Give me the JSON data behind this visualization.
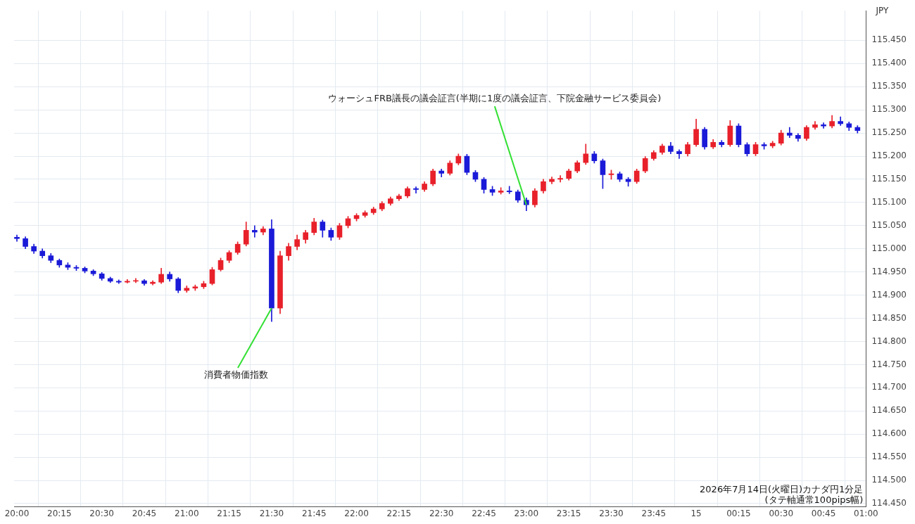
{
  "chart_data": {
    "type": "candlestick",
    "ylabel": "JPY",
    "x": [
      "2026-07-14T20:00",
      "2026-07-14T20:03",
      "2026-07-14T20:06",
      "2026-07-14T20:09",
      "2026-07-14T20:12",
      "2026-07-14T20:15",
      "2026-07-14T20:18",
      "2026-07-14T20:21",
      "2026-07-14T20:24",
      "2026-07-14T20:27",
      "2026-07-14T20:30",
      "2026-07-14T20:33",
      "2026-07-14T20:36",
      "2026-07-14T20:39",
      "2026-07-14T20:42",
      "2026-07-14T20:45",
      "2026-07-14T20:48",
      "2026-07-14T20:51",
      "2026-07-14T20:54",
      "2026-07-14T20:57",
      "2026-07-14T21:00",
      "2026-07-14T21:03",
      "2026-07-14T21:06",
      "2026-07-14T21:09",
      "2026-07-14T21:12",
      "2026-07-14T21:15",
      "2026-07-14T21:18",
      "2026-07-14T21:21",
      "2026-07-14T21:24",
      "2026-07-14T21:27",
      "2026-07-14T21:30",
      "2026-07-14T21:33",
      "2026-07-14T21:36",
      "2026-07-14T21:39",
      "2026-07-14T21:42",
      "2026-07-14T21:45",
      "2026-07-14T21:48",
      "2026-07-14T21:51",
      "2026-07-14T21:54",
      "2026-07-14T21:57",
      "2026-07-14T22:00",
      "2026-07-14T22:03",
      "2026-07-14T22:06",
      "2026-07-14T22:09",
      "2026-07-14T22:12",
      "2026-07-14T22:15",
      "2026-07-14T22:18",
      "2026-07-14T22:21",
      "2026-07-14T22:24",
      "2026-07-14T22:27",
      "2026-07-14T22:30",
      "2026-07-14T22:33",
      "2026-07-14T22:36",
      "2026-07-14T22:39",
      "2026-07-14T22:42",
      "2026-07-14T22:45",
      "2026-07-14T22:48",
      "2026-07-14T22:51",
      "2026-07-14T22:54",
      "2026-07-14T22:57",
      "2026-07-14T23:00",
      "2026-07-14T23:03",
      "2026-07-14T23:06",
      "2026-07-14T23:09",
      "2026-07-14T23:12",
      "2026-07-14T23:15",
      "2026-07-14T23:18",
      "2026-07-14T23:21",
      "2026-07-14T23:24",
      "2026-07-14T23:27",
      "2026-07-14T23:30",
      "2026-07-14T23:33",
      "2026-07-14T23:36",
      "2026-07-14T23:39",
      "2026-07-14T23:42",
      "2026-07-14T23:45",
      "2026-07-14T23:48",
      "2026-07-14T23:51",
      "2026-07-14T23:54",
      "2026-07-14T23:57",
      "2026-07-15T00:00",
      "2026-07-15T00:03",
      "2026-07-15T00:06",
      "2026-07-15T00:09",
      "2026-07-15T00:12",
      "2026-07-15T00:15",
      "2026-07-15T00:18",
      "2026-07-15T00:21",
      "2026-07-15T00:24",
      "2026-07-15T00:27",
      "2026-07-15T00:30",
      "2026-07-15T00:33",
      "2026-07-15T00:36",
      "2026-07-15T00:39",
      "2026-07-15T00:42",
      "2026-07-15T00:45",
      "2026-07-15T00:48",
      "2026-07-15T00:51",
      "2026-07-15T00:54",
      "2026-07-15T00:57"
    ],
    "ohlc": [
      [
        115.025,
        115.03,
        115.016,
        115.022
      ],
      [
        115.022,
        115.026,
        115.0,
        115.005
      ],
      [
        115.005,
        115.01,
        114.99,
        114.995
      ],
      [
        114.995,
        115.0,
        114.98,
        114.985
      ],
      [
        114.985,
        114.99,
        114.97,
        114.975
      ],
      [
        114.975,
        114.978,
        114.96,
        114.965
      ],
      [
        114.965,
        114.97,
        114.955,
        114.96
      ],
      [
        114.96,
        114.964,
        114.953,
        114.958
      ],
      [
        114.958,
        114.961,
        114.948,
        114.952
      ],
      [
        114.952,
        114.955,
        114.942,
        114.946
      ],
      [
        114.946,
        114.949,
        114.932,
        114.936
      ],
      [
        114.936,
        114.939,
        114.927,
        114.93
      ],
      [
        114.93,
        114.933,
        114.925,
        114.928
      ],
      [
        114.928,
        114.934,
        114.926,
        114.93
      ],
      [
        114.93,
        114.936,
        114.927,
        114.931
      ],
      [
        114.931,
        114.934,
        114.921,
        114.925
      ],
      [
        114.925,
        114.931,
        114.922,
        114.928
      ],
      [
        114.928,
        114.958,
        114.925,
        114.945
      ],
      [
        114.945,
        114.95,
        114.93,
        114.935
      ],
      [
        114.935,
        114.938,
        114.905,
        114.91
      ],
      [
        114.91,
        114.92,
        114.906,
        114.915
      ],
      [
        114.915,
        114.922,
        114.91,
        114.918
      ],
      [
        114.918,
        114.93,
        114.914,
        114.925
      ],
      [
        114.925,
        114.96,
        114.922,
        114.955
      ],
      [
        114.955,
        114.98,
        114.952,
        114.975
      ],
      [
        114.975,
        114.996,
        114.97,
        114.992
      ],
      [
        114.992,
        115.015,
        114.988,
        115.01
      ],
      [
        115.01,
        115.058,
        115.006,
        115.04
      ],
      [
        115.04,
        115.05,
        115.025,
        115.036
      ],
      [
        115.036,
        115.048,
        115.03,
        115.043
      ],
      [
        115.043,
        115.063,
        114.843,
        114.872
      ],
      [
        114.872,
        114.995,
        114.86,
        114.985
      ],
      [
        114.985,
        115.012,
        114.975,
        115.005
      ],
      [
        115.005,
        115.03,
        114.998,
        115.02
      ],
      [
        115.02,
        115.04,
        115.012,
        115.035
      ],
      [
        115.035,
        115.066,
        115.03,
        115.058
      ],
      [
        115.058,
        115.062,
        115.025,
        115.04
      ],
      [
        115.04,
        115.045,
        115.018,
        115.025
      ],
      [
        115.025,
        115.055,
        115.02,
        115.05
      ],
      [
        115.05,
        115.07,
        115.045,
        115.065
      ],
      [
        115.065,
        115.076,
        115.06,
        115.072
      ],
      [
        115.072,
        115.082,
        115.068,
        115.078
      ],
      [
        115.078,
        115.09,
        115.074,
        115.086
      ],
      [
        115.086,
        115.102,
        115.082,
        115.098
      ],
      [
        115.098,
        115.112,
        115.094,
        115.108
      ],
      [
        115.108,
        115.118,
        115.104,
        115.114
      ],
      [
        115.114,
        115.134,
        115.11,
        115.13
      ],
      [
        115.13,
        115.134,
        115.12,
        115.128
      ],
      [
        115.128,
        115.145,
        115.124,
        115.14
      ],
      [
        115.14,
        115.172,
        115.136,
        115.168
      ],
      [
        115.168,
        115.172,
        115.155,
        115.163
      ],
      [
        115.163,
        115.19,
        115.159,
        115.185
      ],
      [
        115.185,
        115.205,
        115.181,
        115.2
      ],
      [
        115.2,
        115.204,
        115.16,
        115.165
      ],
      [
        115.165,
        115.169,
        115.145,
        115.15
      ],
      [
        115.15,
        115.154,
        115.12,
        115.128
      ],
      [
        115.128,
        115.135,
        115.115,
        115.122
      ],
      [
        115.122,
        115.132,
        115.118,
        115.125
      ],
      [
        115.125,
        115.135,
        115.119,
        115.123
      ],
      [
        115.123,
        115.127,
        115.1,
        115.105
      ],
      [
        115.105,
        115.11,
        115.082,
        115.095
      ],
      [
        115.095,
        115.13,
        115.09,
        115.125
      ],
      [
        115.125,
        115.15,
        115.12,
        115.145
      ],
      [
        115.145,
        115.155,
        115.14,
        115.15
      ],
      [
        115.15,
        115.158,
        115.144,
        115.152
      ],
      [
        115.152,
        115.172,
        115.148,
        115.168
      ],
      [
        115.168,
        115.19,
        115.164,
        115.186
      ],
      [
        115.186,
        115.226,
        115.182,
        115.205
      ],
      [
        115.205,
        115.21,
        115.185,
        115.19
      ],
      [
        115.19,
        115.194,
        115.13,
        115.16
      ],
      [
        115.16,
        115.17,
        115.15,
        115.162
      ],
      [
        115.162,
        115.166,
        115.145,
        115.15
      ],
      [
        115.15,
        115.154,
        115.135,
        115.145
      ],
      [
        115.145,
        115.172,
        115.141,
        115.168
      ],
      [
        115.168,
        115.199,
        115.164,
        115.195
      ],
      [
        115.195,
        115.212,
        115.191,
        115.208
      ],
      [
        115.208,
        115.226,
        115.204,
        115.222
      ],
      [
        115.222,
        115.23,
        115.205,
        115.21
      ],
      [
        115.21,
        115.214,
        115.195,
        115.205
      ],
      [
        115.205,
        115.23,
        115.2,
        115.225
      ],
      [
        115.225,
        115.28,
        115.221,
        115.258
      ],
      [
        115.258,
        115.262,
        115.215,
        115.22
      ],
      [
        115.22,
        115.236,
        115.216,
        115.23
      ],
      [
        115.23,
        115.234,
        115.22,
        115.225
      ],
      [
        115.225,
        115.277,
        115.221,
        115.265
      ],
      [
        115.265,
        115.27,
        115.22,
        115.225
      ],
      [
        115.225,
        115.229,
        115.2,
        115.205
      ],
      [
        115.205,
        115.23,
        115.201,
        115.225
      ],
      [
        115.225,
        115.229,
        115.215,
        115.222
      ],
      [
        115.222,
        115.232,
        115.218,
        115.228
      ],
      [
        115.228,
        115.256,
        115.224,
        115.25
      ],
      [
        115.25,
        115.262,
        115.24,
        115.245
      ],
      [
        115.245,
        115.249,
        115.232,
        115.238
      ],
      [
        115.238,
        115.266,
        115.234,
        115.262
      ],
      [
        115.262,
        115.275,
        115.258,
        115.268
      ],
      [
        115.268,
        115.272,
        115.26,
        115.265
      ],
      [
        115.265,
        115.288,
        115.261,
        115.275
      ],
      [
        115.275,
        115.285,
        115.266,
        115.27
      ],
      [
        115.27,
        115.274,
        115.255,
        115.262
      ],
      [
        115.262,
        115.266,
        115.25,
        115.255
      ]
    ],
    "colors": [
      "#1a1ad8",
      "#1a1ad8",
      "#1a1ad8",
      "#1a1ad8",
      "#1a1ad8",
      "#1a1ad8",
      "#1a1ad8",
      "#1a1ad8",
      "#1a1ad8",
      "#1a1ad8",
      "#1a1ad8",
      "#1a1ad8",
      "#1a1ad8",
      "#e8202a",
      "#e8202a",
      "#1a1ad8",
      "#e8202a",
      "#e8202a",
      "#1a1ad8",
      "#1a1ad8",
      "#e8202a",
      "#e8202a",
      "#e8202a",
      "#e8202a",
      "#e8202a",
      "#e8202a",
      "#e8202a",
      "#e8202a",
      "#1a1ad8",
      "#e8202a",
      "#1a1ad8",
      "#e8202a",
      "#e8202a",
      "#e8202a",
      "#e8202a",
      "#e8202a",
      "#1a1ad8",
      "#1a1ad8",
      "#e8202a",
      "#e8202a",
      "#e8202a",
      "#e8202a",
      "#e8202a",
      "#e8202a",
      "#e8202a",
      "#e8202a",
      "#e8202a",
      "#1a1ad8",
      "#e8202a",
      "#e8202a",
      "#1a1ad8",
      "#e8202a",
      "#e8202a",
      "#1a1ad8",
      "#1a1ad8",
      "#1a1ad8",
      "#1a1ad8",
      "#e8202a",
      "#1a1ad8",
      "#1a1ad8",
      "#1a1ad8",
      "#e8202a",
      "#e8202a",
      "#e8202a",
      "#e8202a",
      "#e8202a",
      "#e8202a",
      "#e8202a",
      "#1a1ad8",
      "#1a1ad8",
      "#e8202a",
      "#1a1ad8",
      "#1a1ad8",
      "#e8202a",
      "#e8202a",
      "#e8202a",
      "#e8202a",
      "#1a1ad8",
      "#1a1ad8",
      "#e8202a",
      "#e8202a",
      "#1a1ad8",
      "#e8202a",
      "#1a1ad8",
      "#e8202a",
      "#1a1ad8",
      "#1a1ad8",
      "#e8202a",
      "#1a1ad8",
      "#e8202a",
      "#e8202a",
      "#1a1ad8",
      "#1a1ad8",
      "#e8202a",
      "#e8202a",
      "#1a1ad8",
      "#e8202a",
      "#1a1ad8",
      "#1a1ad8",
      "#1a1ad8"
    ],
    "xlim": [
      "2026-07-14T19:59",
      "2026-07-15T01:00"
    ],
    "xticks": [
      {
        "value": "2026-07-14T20:00",
        "label": "20:00"
      },
      {
        "value": "2026-07-14T20:15",
        "label": "20:15"
      },
      {
        "value": "2026-07-14T20:30",
        "label": "20:30"
      },
      {
        "value": "2026-07-14T20:45",
        "label": "20:45"
      },
      {
        "value": "2026-07-14T21:00",
        "label": "21:00"
      },
      {
        "value": "2026-07-14T21:15",
        "label": "21:15"
      },
      {
        "value": "2026-07-14T21:30",
        "label": "21:30"
      },
      {
        "value": "2026-07-14T21:45",
        "label": "21:45"
      },
      {
        "value": "2026-07-14T22:00",
        "label": "22:00"
      },
      {
        "value": "2026-07-14T22:15",
        "label": "22:15"
      },
      {
        "value": "2026-07-14T22:30",
        "label": "22:30"
      },
      {
        "value": "2026-07-14T22:45",
        "label": "22:45"
      },
      {
        "value": "2026-07-14T23:00",
        "label": "23:00"
      },
      {
        "value": "2026-07-14T23:15",
        "label": "23:15"
      },
      {
        "value": "2026-07-14T23:30",
        "label": "23:30"
      },
      {
        "value": "2026-07-14T23:45",
        "label": "23:45"
      },
      {
        "value": "2026-07-15T00:00",
        "label": "15"
      },
      {
        "value": "2026-07-15T00:15",
        "label": "00:15"
      },
      {
        "value": "2026-07-15T00:30",
        "label": "00:30"
      },
      {
        "value": "2026-07-15T00:45",
        "label": "00:45"
      },
      {
        "value": "2026-07-15T01:00",
        "label": "01:00"
      }
    ],
    "ylim": [
      114.443,
      115.514
    ],
    "yticks": [
      {
        "value": 114.45,
        "label": "114.450"
      },
      {
        "value": 114.5,
        "label": "114.500"
      },
      {
        "value": 114.55,
        "label": "114.550"
      },
      {
        "value": 114.6,
        "label": "114.600"
      },
      {
        "value": 114.65,
        "label": "114.650"
      },
      {
        "value": 114.7,
        "label": "114.700"
      },
      {
        "value": 114.75,
        "label": "114.750"
      },
      {
        "value": 114.8,
        "label": "114.800"
      },
      {
        "value": 114.85,
        "label": "114.850"
      },
      {
        "value": 114.9,
        "label": "114.900"
      },
      {
        "value": 114.95,
        "label": "114.950"
      },
      {
        "value": 115,
        "label": "115.000"
      },
      {
        "value": 115.05,
        "label": "115.050"
      },
      {
        "value": 115.1,
        "label": "115.100"
      },
      {
        "value": 115.15,
        "label": "115.150"
      },
      {
        "value": 115.2,
        "label": "115.200"
      },
      {
        "value": 115.25,
        "label": "115.250"
      },
      {
        "value": 115.3,
        "label": "115.300"
      },
      {
        "value": 115.35,
        "label": "115.350"
      },
      {
        "value": 115.4,
        "label": "115.400"
      },
      {
        "value": 115.45,
        "label": "115.450"
      }
    ],
    "grid": true,
    "annotations": [
      {
        "text": "消費者物価指数",
        "x": "2026-07-14T21:30",
        "y": 114.872
      },
      {
        "text": "ウォーシュFRB議長の議会証言(半期に1度の議会証言、下院金融サービス委員会)",
        "x": "2026-07-14T23:00",
        "y": 115.095
      },
      "2026年7月14日(火曜日)カナダ円1分足",
      "(タテ軸通常100pips幅)"
    ]
  }
}
